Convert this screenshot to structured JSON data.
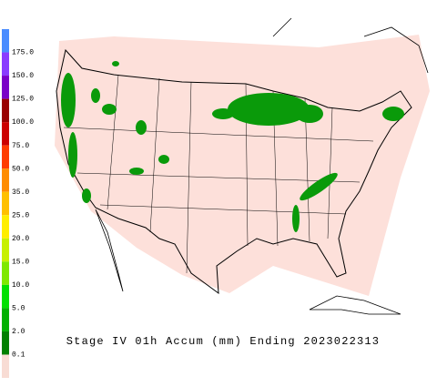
{
  "legend": {
    "labels": [
      "175.0",
      "150.0",
      "125.0",
      "100.0",
      "75.0",
      "50.0",
      "35.0",
      "25.0",
      "20.0",
      "15.0",
      "10.0",
      "5.0",
      "2.0",
      "0.1"
    ],
    "colors": [
      "#4a8cff",
      "#8a3cff",
      "#7a00c8",
      "#990000",
      "#cc0000",
      "#ff3c00",
      "#ff8c00",
      "#ffc000",
      "#ffee00",
      "#c8f000",
      "#7fe800",
      "#00e000",
      "#00b000",
      "#008000",
      "#f8dcd4"
    ]
  },
  "caption": "Stage IV 01h Accum (mm) Ending 2023022313"
}
